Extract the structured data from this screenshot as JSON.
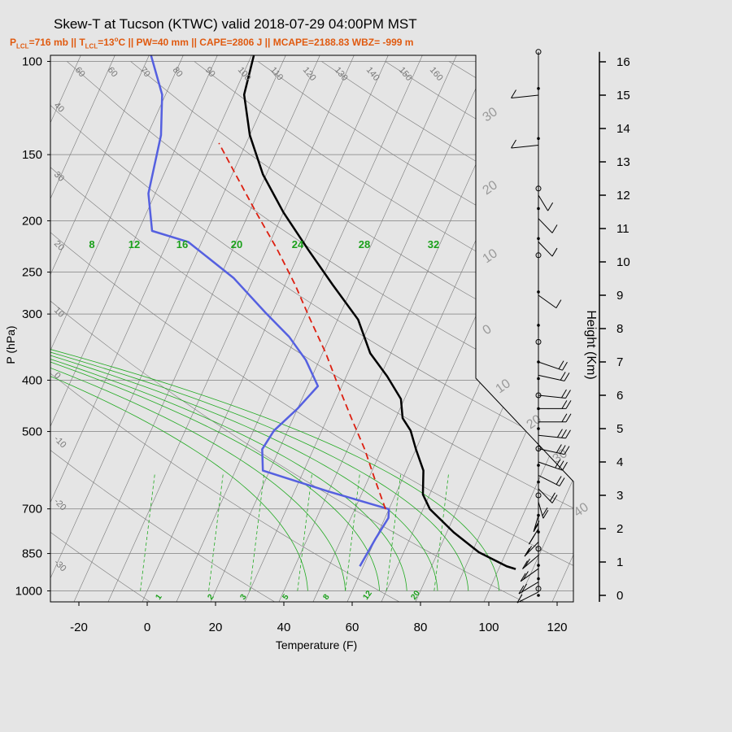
{
  "chart_data": {
    "type": "skew-t",
    "title": "Skew-T at Tucson (KTWC) valid 2018-07-29 04:00PM MST",
    "subtitle": {
      "plcl_label": "P",
      "plcl_sub": "LCL",
      "plcl_value": "=716 mb || ",
      "tlcl_label": "T",
      "tlcl_sub": "LCL",
      "tlcl_value": "=13",
      "rest": "C || PW=40 mm || CAPE=2806 J || MCAPE=2188.83 WBZ= -999 m"
    },
    "xlabel": "Temperature (F)",
    "ylabel": "P (hPa)",
    "height_label": "Height (Km)",
    "x_ticks": [
      -20,
      0,
      20,
      40,
      60,
      80,
      100,
      120
    ],
    "p_ticks": [
      100,
      150,
      200,
      250,
      300,
      400,
      500,
      700,
      850,
      1000
    ],
    "height_ticks": [
      0,
      1,
      2,
      3,
      4,
      5,
      6,
      7,
      8,
      9,
      10,
      11,
      12,
      13,
      14,
      15,
      16
    ],
    "isotherm_labels": [
      "60",
      "60",
      "70",
      "80",
      "90",
      "100",
      "110",
      "120",
      "130",
      "140",
      "150",
      "160"
    ],
    "dry_adiabat_labels": [
      "40",
      "30",
      "20",
      "10",
      "0",
      "-10",
      "-20",
      "-30"
    ],
    "theta_e_labels": [
      "30",
      "20",
      "10",
      "0",
      "10",
      "20",
      "30",
      "40"
    ],
    "mixing_ratio_labels": [
      "1",
      "2",
      "3",
      "5",
      "8",
      "12",
      "20"
    ],
    "moist_adiabat_labels": [
      "8",
      "12",
      "16",
      "20",
      "24",
      "28",
      "32"
    ],
    "temperature": [
      [
        0.9,
        105
      ],
      [
        1.0,
        102
      ],
      [
        1.5,
        92
      ],
      [
        2.2,
        82
      ],
      [
        3.0,
        72
      ],
      [
        3.5,
        68
      ],
      [
        4.3,
        65
      ],
      [
        5.0,
        60
      ],
      [
        5.6,
        56
      ],
      [
        6.0,
        52
      ],
      [
        6.6,
        49
      ],
      [
        7.3,
        42
      ],
      [
        8.0,
        34
      ],
      [
        9.0,
        26
      ],
      [
        10.0,
        14
      ],
      [
        11.0,
        2
      ],
      [
        12.0,
        -10
      ],
      [
        13.0,
        -21
      ],
      [
        14.0,
        -30
      ],
      [
        15.0,
        -37
      ],
      [
        16.2,
        -40
      ]
    ],
    "dewpoint": [
      [
        1.0,
        59
      ],
      [
        2.0,
        60
      ],
      [
        2.7,
        61
      ],
      [
        3.0,
        60
      ],
      [
        3.6,
        40
      ],
      [
        4.3,
        18
      ],
      [
        5.0,
        15
      ],
      [
        5.6,
        16
      ],
      [
        6.3,
        20
      ],
      [
        7.0,
        23
      ],
      [
        7.8,
        16
      ],
      [
        8.5,
        8
      ],
      [
        9.2,
        -2
      ],
      [
        10.2,
        -16
      ],
      [
        11.2,
        -34
      ],
      [
        11.5,
        -46
      ],
      [
        12.5,
        -52
      ],
      [
        14.0,
        -56
      ],
      [
        15.0,
        -61
      ],
      [
        16.0,
        -70
      ],
      [
        16.2,
        -73
      ]
    ],
    "parcel": [
      [
        3.0,
        59
      ],
      [
        4.0,
        52
      ],
      [
        5.0,
        45
      ],
      [
        6.0,
        37
      ],
      [
        7.0,
        29
      ],
      [
        8.0,
        21
      ],
      [
        9.0,
        12
      ],
      [
        10.0,
        3
      ],
      [
        11.0,
        -7
      ],
      [
        12.0,
        -18
      ],
      [
        13.0,
        -29
      ],
      [
        13.8,
        -38
      ]
    ],
    "series": [
      {
        "name": "temperature",
        "color": "#000000"
      },
      {
        "name": "dewpoint",
        "color": "#5560e0"
      },
      {
        "name": "parcel",
        "color": "#dd1f10"
      }
    ],
    "wind_barbs": [
      [
        0.1,
        230,
        5
      ],
      [
        0.4,
        225,
        10
      ],
      [
        0.8,
        220,
        10
      ],
      [
        1.2,
        215,
        10
      ],
      [
        1.6,
        210,
        10
      ],
      [
        2.0,
        200,
        10
      ],
      [
        2.4,
        190,
        10
      ],
      [
        2.8,
        170,
        10
      ],
      [
        3.2,
        150,
        10
      ],
      [
        3.6,
        130,
        10
      ],
      [
        4.0,
        120,
        15
      ],
      [
        4.4,
        110,
        15
      ],
      [
        4.8,
        100,
        15
      ],
      [
        5.2,
        90,
        10
      ],
      [
        5.6,
        90,
        10
      ],
      [
        6.0,
        100,
        10
      ],
      [
        6.6,
        110,
        10
      ],
      [
        7.0,
        120,
        10
      ],
      [
        9.0,
        140,
        5
      ],
      [
        10.6,
        150,
        5
      ],
      [
        11.3,
        150,
        5
      ],
      [
        12.0,
        160,
        5
      ],
      [
        13.5,
        260,
        5
      ],
      [
        15.0,
        260,
        5
      ]
    ],
    "profile_markers": [
      0.0,
      0.2,
      0.5,
      0.9,
      1.4,
      1.9,
      2.4,
      3.0,
      3.4,
      3.9,
      4.4,
      5.0,
      5.6,
      6.0,
      6.5,
      7.0,
      7.6,
      8.1,
      9.1,
      10.2,
      10.7,
      11.6,
      12.2,
      13.7,
      15.2,
      16.3
    ],
    "colors": {
      "background": "#e5e5e5",
      "title_orange": "#e05a10",
      "isobar": "#999999",
      "isotherm": "#7a7a7a",
      "mixing_ratio": "#22aa22",
      "moist_adiabat": "#22aa22",
      "green_label": "#1aa01a"
    },
    "ylim_pressure": [
      1050,
      100
    ],
    "xlim_f": [
      -28,
      125
    ]
  }
}
